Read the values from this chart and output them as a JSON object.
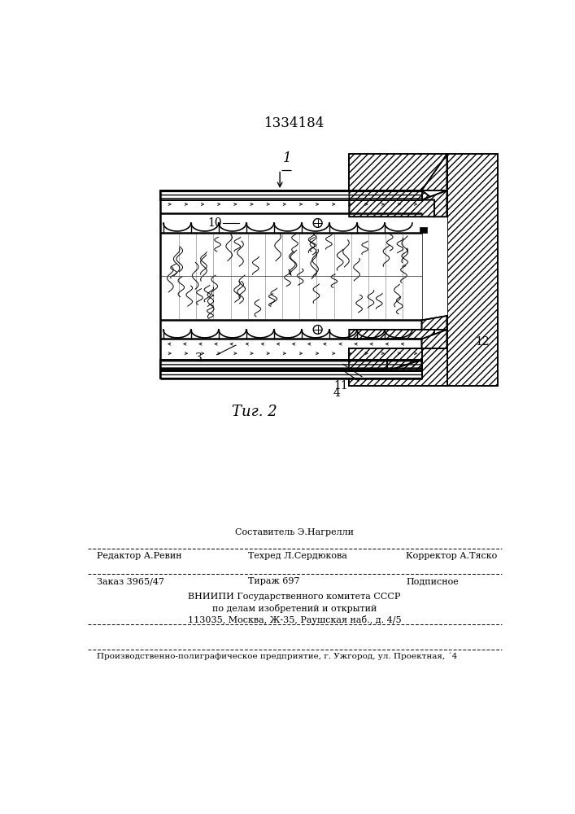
{
  "patent_number": "1334184",
  "bg_color": "#ffffff",
  "fig_caption": "Τиг. 2",
  "label_1": "1",
  "label_3": "3",
  "label_4": "4",
  "label_10": "10",
  "label_11": "11",
  "label_12": "12",
  "footer_line1_center": "Составитель Э.Нагрелли",
  "footer_line2_left": "Редактор А.Ревин",
  "footer_line2_center": "Техред Л.Сердюкова",
  "footer_line2_right": "Корректор А.Тяско",
  "footer_order": "Заказ 3965/47",
  "footer_tirazh": "Тираж 697",
  "footer_podp": "Подписное",
  "footer_vniip1": "ВНИИПИ Государственного комитета СССР",
  "footer_vniip2": "по делам изобретений и открытий",
  "footer_addr": "113035, Москва, Ж-35, Раушская наб., д. 4/5",
  "footer_prod": "Производственно-полиграфическое предприятие, г. Ужгород, ул. Проектная, ´4"
}
